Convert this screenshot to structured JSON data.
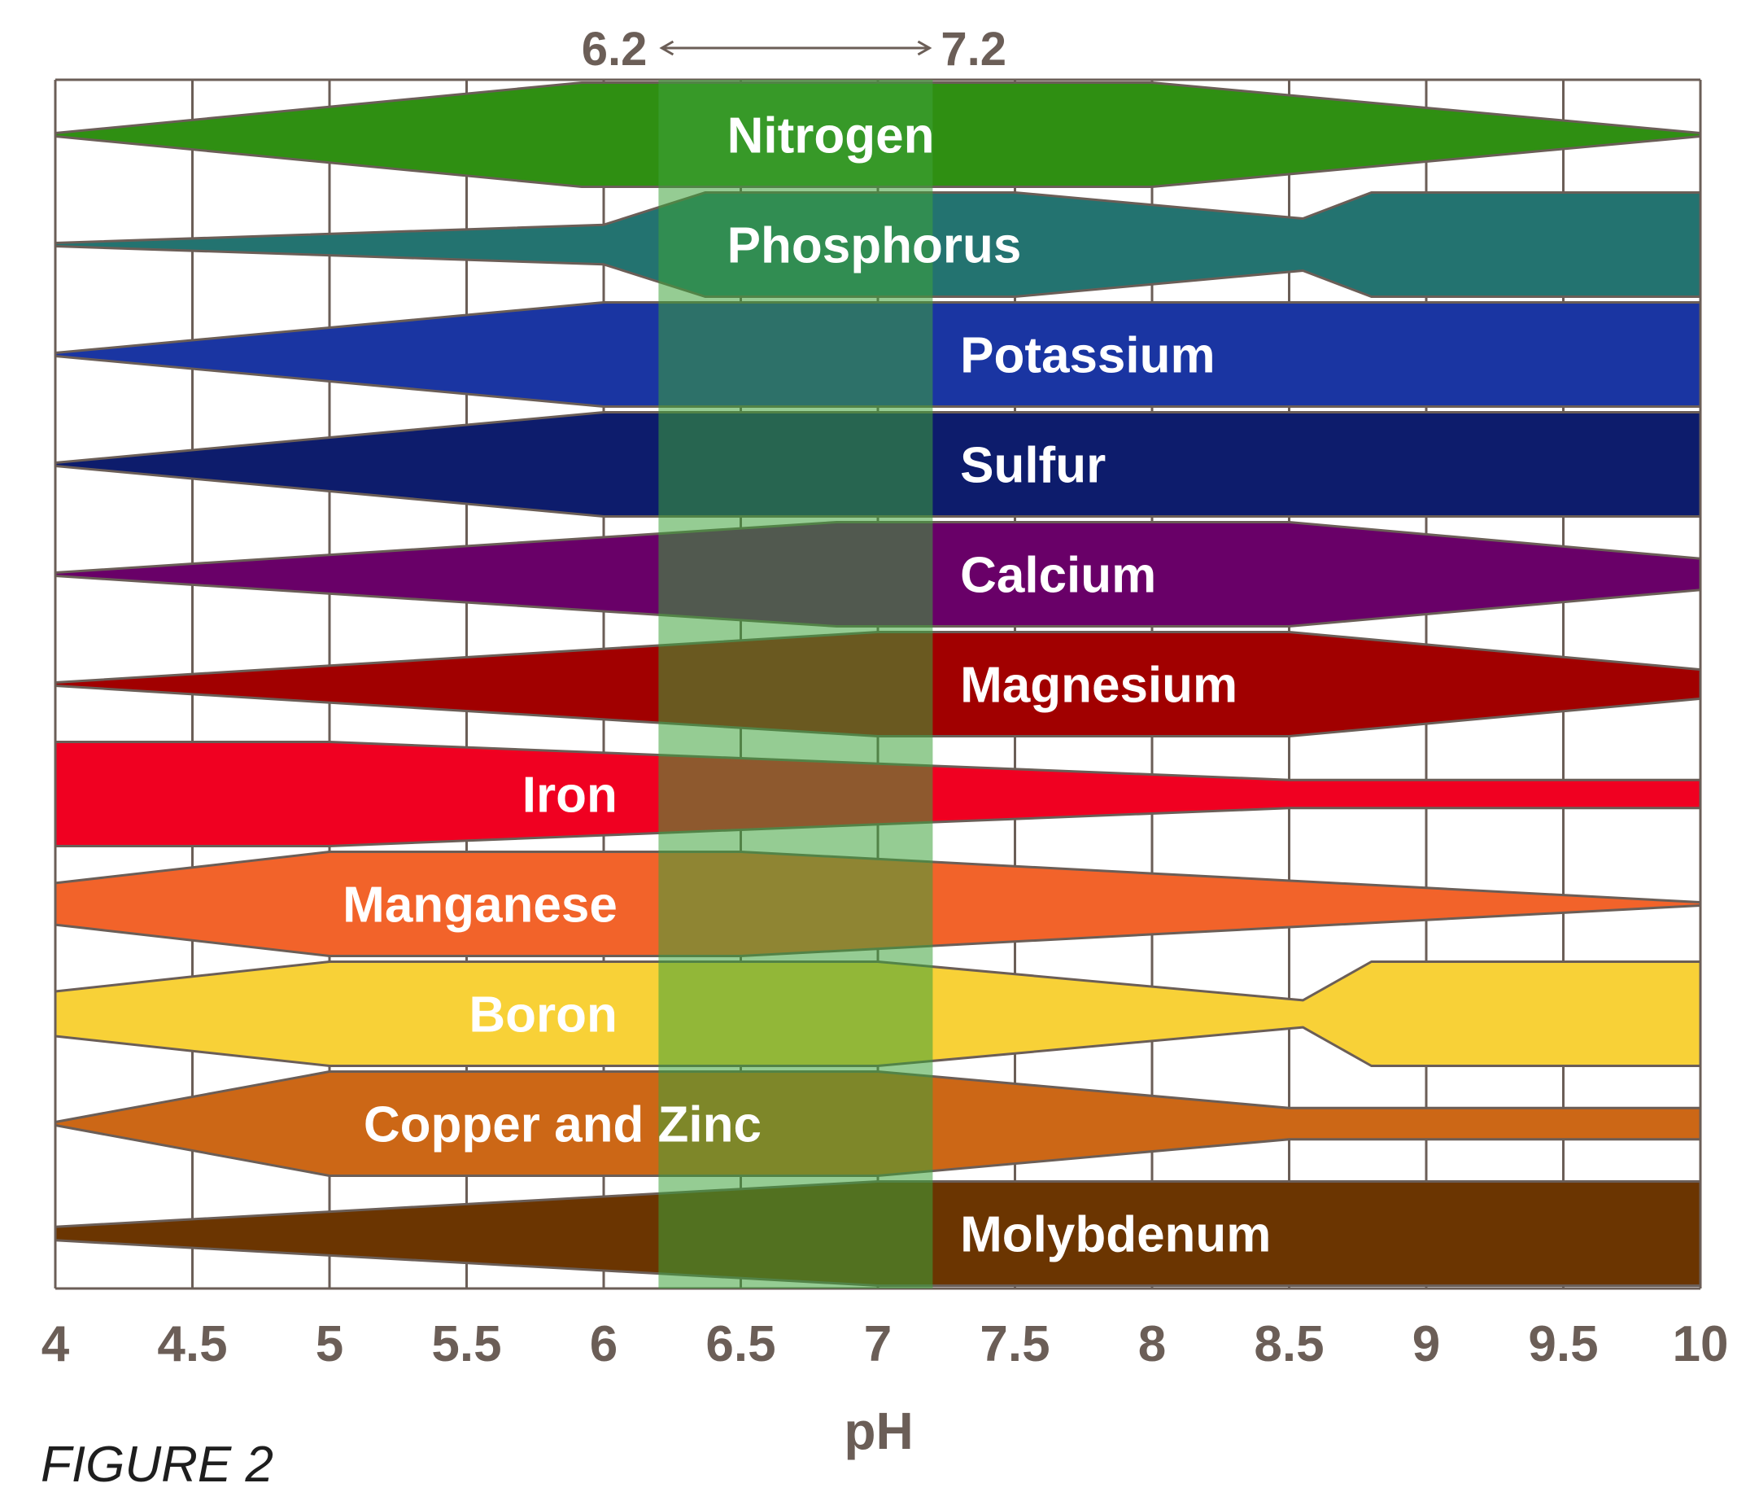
{
  "figure_label": "FIGURE 2",
  "chart_data": {
    "type": "area",
    "xlabel": "pH",
    "ylabel": "",
    "xlim": [
      4,
      10
    ],
    "x_ticks": [
      "4",
      "4.5",
      "5",
      "5.5",
      "6",
      "6.5",
      "7",
      "7.5",
      "8",
      "8.5",
      "9",
      "9.5",
      "10"
    ],
    "grid": true,
    "highlight_range": {
      "from": 6.2,
      "to": 7.2,
      "from_label": "6.2",
      "to_label": "7.2",
      "color": "#3ea33a"
    },
    "series": [
      {
        "name": "Nitrogen",
        "color": "#2f8f12",
        "label_pos": 6.45,
        "label_align": "start",
        "points": [
          [
            4,
            0.0
          ],
          [
            5.92,
            1.0
          ],
          [
            8.0,
            1.0
          ],
          [
            10,
            0.0
          ]
        ]
      },
      {
        "name": "Phosphorus",
        "color": "#237370",
        "label_pos": 6.45,
        "label_align": "start",
        "points": [
          [
            4,
            0.0
          ],
          [
            6.0,
            0.38
          ],
          [
            6.37,
            1.0
          ],
          [
            7.5,
            1.0
          ],
          [
            8.55,
            0.5
          ],
          [
            8.8,
            1.0
          ],
          [
            10,
            1.0
          ]
        ]
      },
      {
        "name": "Potassium",
        "color": "#1a35a2",
        "label_pos": 7.3,
        "label_align": "start",
        "points": [
          [
            4,
            0.0
          ],
          [
            6.0,
            1.0
          ],
          [
            10,
            1.0
          ]
        ]
      },
      {
        "name": "Sulfur",
        "color": "#0d1c6c",
        "label_pos": 7.3,
        "label_align": "start",
        "points": [
          [
            4,
            0.0
          ],
          [
            6.0,
            1.0
          ],
          [
            10,
            1.0
          ]
        ]
      },
      {
        "name": "Calcium",
        "color": "#690068",
        "label_pos": 7.3,
        "label_align": "start",
        "points": [
          [
            4,
            0.0
          ],
          [
            6.85,
            1.0
          ],
          [
            8.5,
            1.0
          ],
          [
            10,
            0.3
          ]
        ]
      },
      {
        "name": "Magnesium",
        "color": "#a10000",
        "label_pos": 7.3,
        "label_align": "start",
        "points": [
          [
            4,
            0.0
          ],
          [
            7.0,
            1.0
          ],
          [
            8.5,
            1.0
          ],
          [
            10,
            0.28
          ]
        ]
      },
      {
        "name": "Iron",
        "color": "#f00021",
        "label_pos": 6.05,
        "label_align": "end",
        "points": [
          [
            4,
            1.0
          ],
          [
            5.0,
            1.0
          ],
          [
            8.5,
            0.27
          ],
          [
            10,
            0.27
          ]
        ]
      },
      {
        "name": "Manganese",
        "color": "#f2632a",
        "label_pos": 6.05,
        "label_align": "end",
        "points": [
          [
            4,
            0.4
          ],
          [
            5.0,
            1.0
          ],
          [
            6.5,
            1.0
          ],
          [
            10,
            0.0
          ]
        ]
      },
      {
        "name": "Boron",
        "color": "#f8d137",
        "label_pos": 6.05,
        "label_align": "end",
        "points": [
          [
            4,
            0.43
          ],
          [
            5.0,
            1.0
          ],
          [
            7.0,
            1.0
          ],
          [
            8.55,
            0.26
          ],
          [
            8.8,
            1.0
          ],
          [
            10,
            1.0
          ]
        ]
      },
      {
        "name": "Copper and Zinc",
        "color": "#cc6716",
        "label_pos": 5.85,
        "label_align": "middle",
        "points": [
          [
            4,
            0.0
          ],
          [
            5.0,
            1.0
          ],
          [
            7.0,
            1.0
          ],
          [
            8.5,
            0.3
          ],
          [
            10,
            0.3
          ]
        ]
      },
      {
        "name": "Molybdenum",
        "color": "#6b3501",
        "label_pos": 7.3,
        "label_align": "start",
        "points": [
          [
            4,
            0.13
          ],
          [
            7.0,
            1.0
          ],
          [
            10,
            1.0
          ]
        ]
      }
    ]
  }
}
